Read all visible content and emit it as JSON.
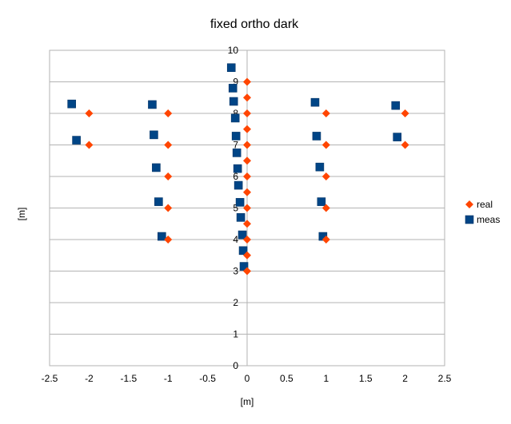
{
  "chart_data": {
    "type": "scatter",
    "title": "fixed ortho dark",
    "xlabel": "[m]",
    "ylabel": "[m]",
    "xlim": [
      -2.5,
      2.5
    ],
    "ylim": [
      0,
      10
    ],
    "xticks": [
      "-2.5",
      "-2",
      "-1.5",
      "-1",
      "-0.5",
      "0",
      "0.5",
      "1",
      "1.5",
      "2",
      "2.5"
    ],
    "yticks": [
      "0",
      "1",
      "2",
      "3",
      "4",
      "5",
      "6",
      "7",
      "8",
      "9",
      "10"
    ],
    "grid": true,
    "legend_position": "right",
    "series": [
      {
        "name": "real",
        "color": "#ff4500",
        "marker": "diamond",
        "points": [
          [
            0,
            3
          ],
          [
            0,
            3.5
          ],
          [
            0,
            4
          ],
          [
            0,
            4.5
          ],
          [
            0,
            5
          ],
          [
            0,
            5.5
          ],
          [
            0,
            6
          ],
          [
            0,
            6.5
          ],
          [
            0,
            7
          ],
          [
            0,
            7.5
          ],
          [
            0,
            8
          ],
          [
            0,
            8.5
          ],
          [
            0,
            9
          ],
          [
            -1,
            4
          ],
          [
            -1,
            5
          ],
          [
            -1,
            6
          ],
          [
            -1,
            7
          ],
          [
            -1,
            8
          ],
          [
            1,
            4
          ],
          [
            1,
            5
          ],
          [
            1,
            6
          ],
          [
            1,
            7
          ],
          [
            1,
            8
          ],
          [
            -2,
            7
          ],
          [
            -2,
            8
          ],
          [
            2,
            7
          ],
          [
            2,
            8
          ]
        ]
      },
      {
        "name": "meas",
        "color": "#004586",
        "marker": "square",
        "points": [
          [
            -0.04,
            3.15
          ],
          [
            -0.05,
            3.65
          ],
          [
            -0.06,
            4.15
          ],
          [
            -0.08,
            4.7
          ],
          [
            -0.09,
            5.18
          ],
          [
            -0.11,
            5.72
          ],
          [
            -0.12,
            6.25
          ],
          [
            -0.13,
            6.75
          ],
          [
            -0.14,
            7.28
          ],
          [
            -0.15,
            7.85
          ],
          [
            -0.17,
            8.38
          ],
          [
            -0.18,
            8.8
          ],
          [
            -0.2,
            9.45
          ],
          [
            -1.08,
            4.1
          ],
          [
            -1.12,
            5.2
          ],
          [
            -1.15,
            6.28
          ],
          [
            -1.18,
            7.32
          ],
          [
            -1.2,
            8.28
          ],
          [
            0.96,
            4.1
          ],
          [
            0.94,
            5.2
          ],
          [
            0.92,
            6.3
          ],
          [
            0.88,
            7.28
          ],
          [
            0.86,
            8.35
          ],
          [
            -2.16,
            7.15
          ],
          [
            -2.22,
            8.3
          ],
          [
            1.9,
            7.25
          ],
          [
            1.88,
            8.25
          ]
        ]
      }
    ]
  }
}
